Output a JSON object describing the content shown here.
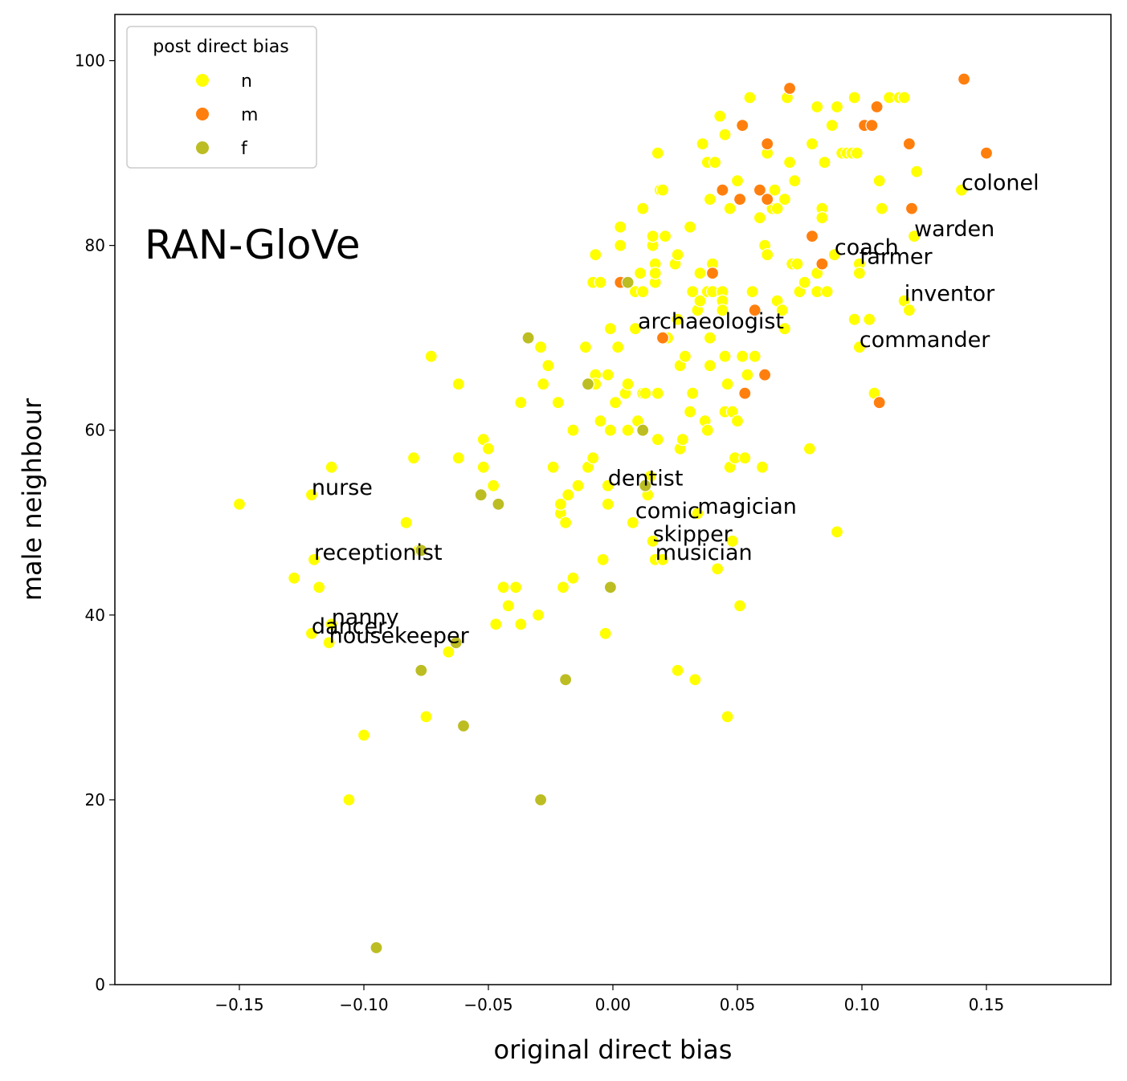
{
  "chart_data": {
    "type": "scatter",
    "xlabel": "original direct bias",
    "ylabel": "male neighbour",
    "xlim": [
      -0.2,
      0.2
    ],
    "ylim": [
      0,
      105
    ],
    "xticks": [
      -0.15,
      -0.1,
      -0.05,
      0.0,
      0.05,
      0.1,
      0.15
    ],
    "xtick_labels": [
      "−0.15",
      "−0.10",
      "−0.05",
      "0.00",
      "0.05",
      "0.10",
      "0.15"
    ],
    "yticks": [
      0,
      20,
      40,
      60,
      80,
      100
    ],
    "ytick_labels": [
      "0",
      "20",
      "40",
      "60",
      "80",
      "100"
    ],
    "grid": false,
    "watermark": "RAN-GloVe",
    "legend": {
      "title": "post direct bias",
      "placement": "upper-left",
      "entries": [
        {
          "label": "n",
          "color": "#ffff00"
        },
        {
          "label": "m",
          "color": "#ff7f0e"
        },
        {
          "label": "f",
          "color": "#bcbd22"
        }
      ]
    },
    "series": [
      {
        "name": "n",
        "color": "#ffff00",
        "points": [
          [
            -0.15,
            52
          ],
          [
            -0.128,
            44
          ],
          [
            -0.121,
            38
          ],
          [
            -0.121,
            53
          ],
          [
            -0.12,
            46
          ],
          [
            -0.118,
            43
          ],
          [
            -0.113,
            56
          ],
          [
            -0.113,
            39
          ],
          [
            -0.114,
            37
          ],
          [
            -0.1,
            27
          ],
          [
            -0.106,
            20
          ],
          [
            -0.095,
            4
          ],
          [
            -0.083,
            50
          ],
          [
            -0.08,
            57
          ],
          [
            -0.078,
            47
          ],
          [
            -0.075,
            29
          ],
          [
            -0.073,
            68
          ],
          [
            -0.066,
            36
          ],
          [
            -0.062,
            65
          ],
          [
            -0.062,
            57
          ],
          [
            -0.052,
            59
          ],
          [
            -0.052,
            56
          ],
          [
            -0.05,
            58
          ],
          [
            -0.048,
            54
          ],
          [
            -0.047,
            39
          ],
          [
            -0.044,
            43
          ],
          [
            -0.042,
            41
          ],
          [
            -0.039,
            43
          ],
          [
            -0.037,
            39
          ],
          [
            -0.037,
            63
          ],
          [
            -0.03,
            40
          ],
          [
            -0.029,
            69
          ],
          [
            -0.028,
            65
          ],
          [
            -0.026,
            67
          ],
          [
            -0.024,
            56
          ],
          [
            -0.022,
            63
          ],
          [
            -0.021,
            51
          ],
          [
            -0.021,
            52
          ],
          [
            -0.02,
            43
          ],
          [
            -0.019,
            50
          ],
          [
            -0.018,
            53
          ],
          [
            -0.016,
            44
          ],
          [
            -0.016,
            60
          ],
          [
            -0.014,
            54
          ],
          [
            -0.011,
            69
          ],
          [
            -0.01,
            56
          ],
          [
            -0.008,
            76
          ],
          [
            -0.008,
            57
          ],
          [
            -0.007,
            66
          ],
          [
            -0.007,
            65
          ],
          [
            -0.007,
            79
          ],
          [
            -0.005,
            76
          ],
          [
            -0.005,
            61
          ],
          [
            -0.004,
            46
          ],
          [
            -0.003,
            38
          ],
          [
            -0.002,
            66
          ],
          [
            -0.002,
            54
          ],
          [
            -0.002,
            52
          ],
          [
            -0.001,
            71
          ],
          [
            -0.001,
            60
          ],
          [
            0.001,
            63
          ],
          [
            0.002,
            69
          ],
          [
            0.003,
            82
          ],
          [
            0.003,
            80
          ],
          [
            0.005,
            64
          ],
          [
            0.006,
            60
          ],
          [
            0.006,
            65
          ],
          [
            0.008,
            50
          ],
          [
            0.009,
            71
          ],
          [
            0.009,
            75
          ],
          [
            0.01,
            61
          ],
          [
            0.011,
            77
          ],
          [
            0.012,
            75
          ],
          [
            0.012,
            64
          ],
          [
            0.012,
            84
          ],
          [
            0.013,
            64
          ],
          [
            0.014,
            53
          ],
          [
            0.015,
            55
          ],
          [
            0.016,
            80
          ],
          [
            0.016,
            81
          ],
          [
            0.016,
            48
          ],
          [
            0.017,
            46
          ],
          [
            0.017,
            78
          ],
          [
            0.017,
            76
          ],
          [
            0.017,
            77
          ],
          [
            0.018,
            90
          ],
          [
            0.018,
            64
          ],
          [
            0.018,
            59
          ],
          [
            0.019,
            86
          ],
          [
            0.02,
            86
          ],
          [
            0.02,
            46
          ],
          [
            0.021,
            81
          ],
          [
            0.022,
            70
          ],
          [
            0.025,
            78
          ],
          [
            0.026,
            79
          ],
          [
            0.026,
            72
          ],
          [
            0.026,
            34
          ],
          [
            0.027,
            58
          ],
          [
            0.027,
            67
          ],
          [
            0.028,
            59
          ],
          [
            0.029,
            68
          ],
          [
            0.031,
            82
          ],
          [
            0.031,
            62
          ],
          [
            0.032,
            75
          ],
          [
            0.032,
            64
          ],
          [
            0.033,
            33
          ],
          [
            0.034,
            51
          ],
          [
            0.034,
            73
          ],
          [
            0.035,
            77
          ],
          [
            0.035,
            74
          ],
          [
            0.036,
            91
          ],
          [
            0.037,
            61
          ],
          [
            0.038,
            75
          ],
          [
            0.038,
            89
          ],
          [
            0.038,
            60
          ],
          [
            0.039,
            85
          ],
          [
            0.039,
            70
          ],
          [
            0.039,
            67
          ],
          [
            0.04,
            78
          ],
          [
            0.04,
            75
          ],
          [
            0.041,
            89
          ],
          [
            0.042,
            45
          ],
          [
            0.043,
            94
          ],
          [
            0.044,
            75
          ],
          [
            0.044,
            74
          ],
          [
            0.044,
            73
          ],
          [
            0.045,
            68
          ],
          [
            0.045,
            62
          ],
          [
            0.045,
            92
          ],
          [
            0.046,
            29
          ],
          [
            0.046,
            65
          ],
          [
            0.047,
            56
          ],
          [
            0.047,
            84
          ],
          [
            0.048,
            62
          ],
          [
            0.048,
            48
          ],
          [
            0.049,
            57
          ],
          [
            0.05,
            87
          ],
          [
            0.05,
            61
          ],
          [
            0.051,
            41
          ],
          [
            0.052,
            68
          ],
          [
            0.053,
            57
          ],
          [
            0.054,
            66
          ],
          [
            0.055,
            96
          ],
          [
            0.056,
            75
          ],
          [
            0.057,
            68
          ],
          [
            0.059,
            83
          ],
          [
            0.06,
            56
          ],
          [
            0.061,
            80
          ],
          [
            0.062,
            79
          ],
          [
            0.062,
            91
          ],
          [
            0.062,
            90
          ],
          [
            0.064,
            84
          ],
          [
            0.065,
            86
          ],
          [
            0.066,
            74
          ],
          [
            0.066,
            84
          ],
          [
            0.068,
            73
          ],
          [
            0.069,
            71
          ],
          [
            0.069,
            85
          ],
          [
            0.07,
            96
          ],
          [
            0.071,
            89
          ],
          [
            0.072,
            78
          ],
          [
            0.073,
            87
          ],
          [
            0.074,
            78
          ],
          [
            0.075,
            75
          ],
          [
            0.077,
            76
          ],
          [
            0.079,
            58
          ],
          [
            0.08,
            91
          ],
          [
            0.082,
            77
          ],
          [
            0.082,
            75
          ],
          [
            0.082,
            95
          ],
          [
            0.084,
            84
          ],
          [
            0.084,
            83
          ],
          [
            0.085,
            89
          ],
          [
            0.086,
            75
          ],
          [
            0.088,
            93
          ],
          [
            0.089,
            79
          ],
          [
            0.09,
            95
          ],
          [
            0.09,
            49
          ],
          [
            0.092,
            90
          ],
          [
            0.094,
            90
          ],
          [
            0.096,
            90
          ],
          [
            0.097,
            96
          ],
          [
            0.097,
            72
          ],
          [
            0.098,
            90
          ],
          [
            0.099,
            78
          ],
          [
            0.099,
            77
          ],
          [
            0.099,
            69
          ],
          [
            0.103,
            72
          ],
          [
            0.105,
            64
          ],
          [
            0.107,
            87
          ],
          [
            0.108,
            84
          ],
          [
            0.111,
            96
          ],
          [
            0.115,
            96
          ],
          [
            0.117,
            96
          ],
          [
            0.117,
            74
          ],
          [
            0.119,
            73
          ],
          [
            0.121,
            81
          ],
          [
            0.122,
            88
          ],
          [
            0.14,
            86
          ]
        ]
      },
      {
        "name": "m",
        "color": "#ff7f0e",
        "points": [
          [
            0.003,
            76
          ],
          [
            0.02,
            70
          ],
          [
            0.04,
            77
          ],
          [
            0.044,
            86
          ],
          [
            0.051,
            85
          ],
          [
            0.052,
            93
          ],
          [
            0.053,
            64
          ],
          [
            0.057,
            73
          ],
          [
            0.059,
            86
          ],
          [
            0.061,
            66
          ],
          [
            0.062,
            91
          ],
          [
            0.062,
            85
          ],
          [
            0.071,
            97
          ],
          [
            0.08,
            81
          ],
          [
            0.084,
            78
          ],
          [
            0.101,
            93
          ],
          [
            0.104,
            93
          ],
          [
            0.106,
            95
          ],
          [
            0.107,
            63
          ],
          [
            0.119,
            91
          ],
          [
            0.12,
            84
          ],
          [
            0.141,
            98
          ],
          [
            0.15,
            90
          ]
        ]
      },
      {
        "name": "f",
        "color": "#bcbd22",
        "points": [
          [
            -0.095,
            4
          ],
          [
            -0.077,
            34
          ],
          [
            -0.077,
            47
          ],
          [
            -0.06,
            28
          ],
          [
            -0.063,
            37
          ],
          [
            -0.053,
            53
          ],
          [
            -0.046,
            52
          ],
          [
            -0.034,
            70
          ],
          [
            -0.029,
            20
          ],
          [
            -0.019,
            33
          ],
          [
            -0.01,
            65
          ],
          [
            -0.001,
            43
          ],
          [
            0.006,
            76
          ],
          [
            0.012,
            60
          ],
          [
            0.013,
            54
          ]
        ]
      }
    ],
    "annotations": [
      {
        "text": "colonel",
        "x": 0.14,
        "y": 86
      },
      {
        "text": "warden",
        "x": 0.121,
        "y": 81
      },
      {
        "text": "coach",
        "x": 0.089,
        "y": 79
      },
      {
        "text": "farmer",
        "x": 0.099,
        "y": 78
      },
      {
        "text": "inventor",
        "x": 0.117,
        "y": 74
      },
      {
        "text": "archaeologist",
        "x": 0.01,
        "y": 71
      },
      {
        "text": "commander",
        "x": 0.099,
        "y": 69
      },
      {
        "text": "dentist",
        "x": -0.002,
        "y": 54
      },
      {
        "text": "magician",
        "x": 0.034,
        "y": 51
      },
      {
        "text": "comic",
        "x": 0.009,
        "y": 50.5
      },
      {
        "text": "skipper",
        "x": 0.016,
        "y": 48
      },
      {
        "text": "musician",
        "x": 0.017,
        "y": 46
      },
      {
        "text": "nurse",
        "x": -0.121,
        "y": 53
      },
      {
        "text": "receptionist",
        "x": -0.12,
        "y": 46
      },
      {
        "text": "nanny",
        "x": -0.113,
        "y": 39
      },
      {
        "text": "dancer",
        "x": -0.121,
        "y": 38
      },
      {
        "text": "housekeeper",
        "x": -0.114,
        "y": 37
      }
    ]
  }
}
